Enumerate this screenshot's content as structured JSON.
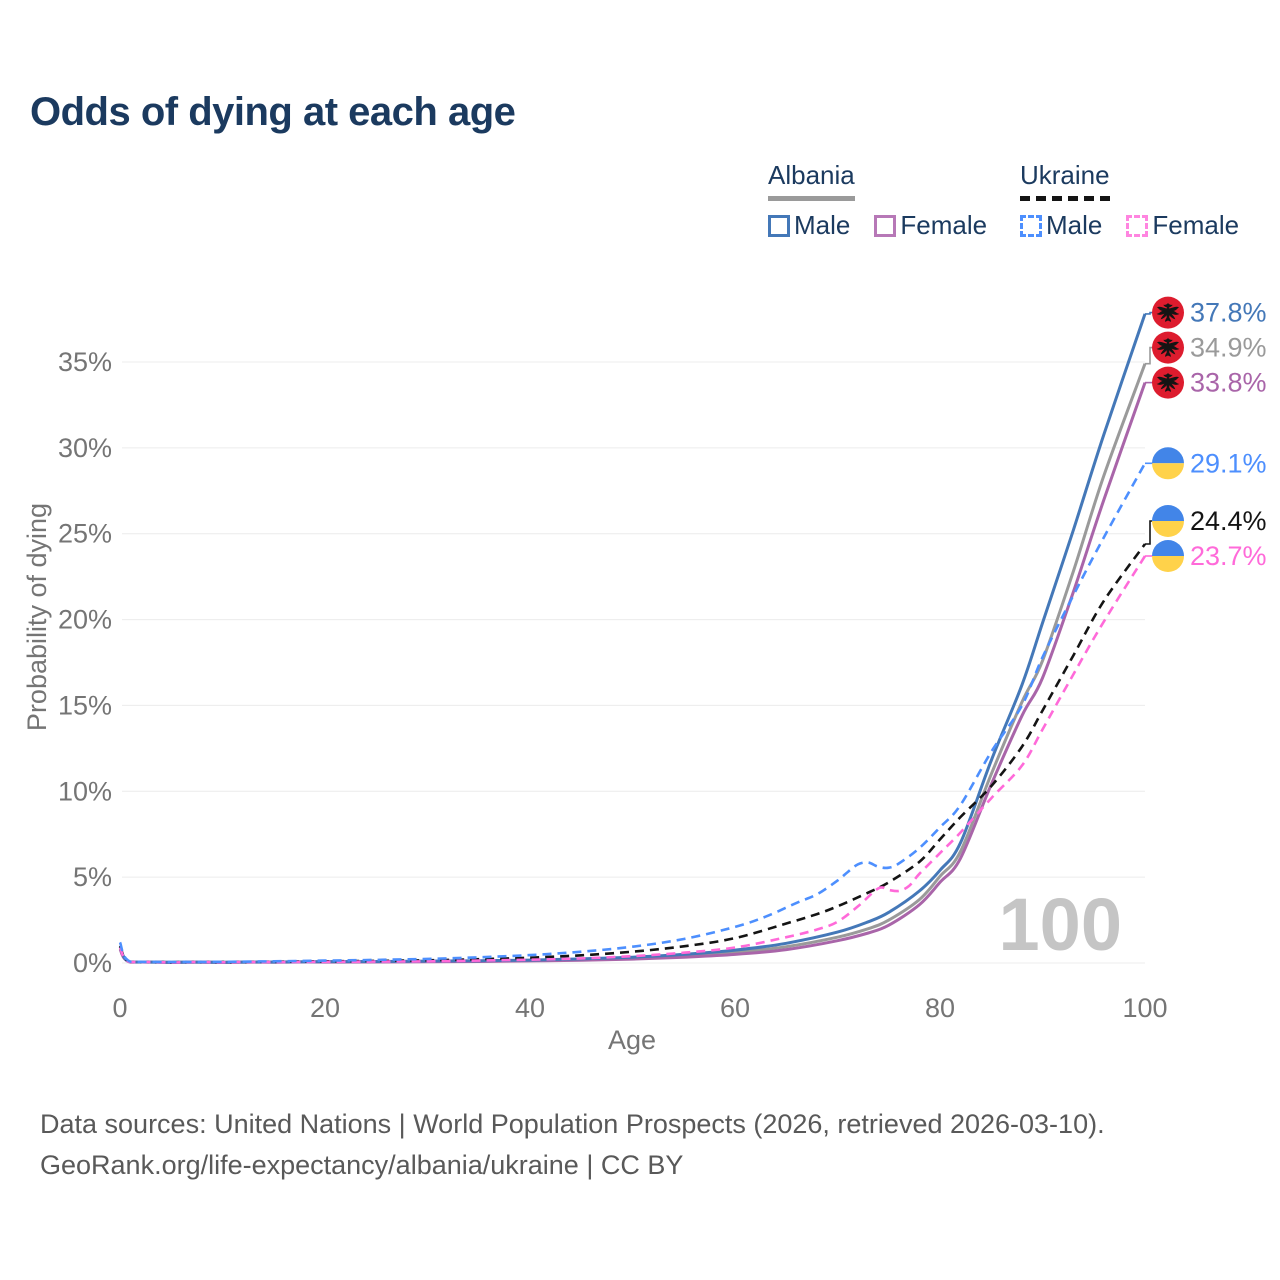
{
  "title": "Odds of dying at each age",
  "legend": {
    "groups": [
      {
        "country": "Albania",
        "line_style": "solid",
        "underline_color": "#9a9a9a",
        "items": [
          {
            "label": "Male",
            "color": "#4478b8"
          },
          {
            "label": "Female",
            "color": "#b778b7"
          }
        ]
      },
      {
        "country": "Ukraine",
        "line_style": "dashed",
        "underline_color": "#141414",
        "items": [
          {
            "label": "Male",
            "color": "#4d8ffe"
          },
          {
            "label": "Female",
            "color": "#ff85e0"
          }
        ]
      }
    ]
  },
  "chart_data": {
    "type": "line",
    "title": "Odds of dying at each age",
    "xlabel": "Age",
    "ylabel": "Probability of dying",
    "x_ticks": [
      0,
      20,
      40,
      60,
      80,
      100
    ],
    "y_tick_labels": [
      "0%",
      "5%",
      "10%",
      "15%",
      "20%",
      "25%",
      "30%",
      "35%"
    ],
    "xlim": [
      0,
      100
    ],
    "ylim_percent": [
      0,
      38.5
    ],
    "grid": "horizontal",
    "legend_position": "top-right",
    "watermark_age": "100",
    "flags": {
      "albania": {
        "background": "#dd1c2e",
        "emblem": "#141414"
      },
      "ukraine": {
        "top": "#4285e8",
        "bottom": "#ffd24a"
      }
    },
    "series": [
      {
        "name": "Albania All",
        "country": "Albania",
        "sex": "all",
        "color": "#9a9a9a",
        "dashed": false,
        "flag": "albania",
        "end_label": "34.9%",
        "end_value": 34.9,
        "points": [
          [
            0,
            0.85
          ],
          [
            1,
            0.05
          ],
          [
            5,
            0.03
          ],
          [
            10,
            0.03
          ],
          [
            15,
            0.05
          ],
          [
            20,
            0.07
          ],
          [
            25,
            0.08
          ],
          [
            30,
            0.09
          ],
          [
            35,
            0.11
          ],
          [
            40,
            0.14
          ],
          [
            45,
            0.2
          ],
          [
            50,
            0.28
          ],
          [
            55,
            0.42
          ],
          [
            60,
            0.62
          ],
          [
            65,
            0.95
          ],
          [
            70,
            1.5
          ],
          [
            73,
            2.0
          ],
          [
            75,
            2.5
          ],
          [
            78,
            3.7
          ],
          [
            80,
            5.05
          ],
          [
            82,
            6.5
          ],
          [
            85,
            11.0
          ],
          [
            88,
            15.2
          ],
          [
            90,
            17.6
          ],
          [
            93,
            22.8
          ],
          [
            96,
            28.4
          ],
          [
            100,
            34.9
          ]
        ]
      },
      {
        "name": "Albania Female",
        "country": "Albania",
        "sex": "female",
        "color": "#a965a9",
        "dashed": false,
        "flag": "albania",
        "end_label": "33.8%",
        "end_value": 33.8,
        "points": [
          [
            0,
            0.8
          ],
          [
            1,
            0.05
          ],
          [
            5,
            0.03
          ],
          [
            10,
            0.03
          ],
          [
            15,
            0.04
          ],
          [
            20,
            0.05
          ],
          [
            25,
            0.06
          ],
          [
            30,
            0.07
          ],
          [
            35,
            0.09
          ],
          [
            40,
            0.12
          ],
          [
            45,
            0.16
          ],
          [
            50,
            0.23
          ],
          [
            55,
            0.34
          ],
          [
            60,
            0.5
          ],
          [
            65,
            0.78
          ],
          [
            70,
            1.3
          ],
          [
            73,
            1.75
          ],
          [
            75,
            2.2
          ],
          [
            78,
            3.4
          ],
          [
            80,
            4.7
          ],
          [
            82,
            6.1
          ],
          [
            85,
            10.4
          ],
          [
            88,
            14.4
          ],
          [
            90,
            16.6
          ],
          [
            93,
            21.6
          ],
          [
            96,
            27.0
          ],
          [
            100,
            33.8
          ]
        ]
      },
      {
        "name": "Albania Male",
        "country": "Albania",
        "sex": "male",
        "color": "#4478b8",
        "dashed": false,
        "flag": "albania",
        "end_label": "37.8%",
        "end_value": 37.8,
        "points": [
          [
            0,
            0.95
          ],
          [
            1,
            0.06
          ],
          [
            5,
            0.04
          ],
          [
            10,
            0.04
          ],
          [
            15,
            0.06
          ],
          [
            20,
            0.08
          ],
          [
            25,
            0.09
          ],
          [
            30,
            0.11
          ],
          [
            35,
            0.13
          ],
          [
            40,
            0.17
          ],
          [
            45,
            0.24
          ],
          [
            50,
            0.34
          ],
          [
            55,
            0.5
          ],
          [
            60,
            0.75
          ],
          [
            65,
            1.15
          ],
          [
            70,
            1.8
          ],
          [
            73,
            2.4
          ],
          [
            75,
            2.95
          ],
          [
            78,
            4.2
          ],
          [
            80,
            5.4
          ],
          [
            82,
            7.0
          ],
          [
            85,
            11.8
          ],
          [
            88,
            16.2
          ],
          [
            90,
            19.8
          ],
          [
            93,
            25.2
          ],
          [
            96,
            30.8
          ],
          [
            100,
            37.8
          ]
        ]
      },
      {
        "name": "Ukraine All",
        "country": "Ukraine",
        "sex": "all",
        "color": "#141414",
        "dashed": true,
        "flag": "ukraine",
        "end_label": "24.4%",
        "end_value": 24.4,
        "points": [
          [
            0,
            1.0
          ],
          [
            1,
            0.06
          ],
          [
            5,
            0.04
          ],
          [
            10,
            0.05
          ],
          [
            15,
            0.07
          ],
          [
            20,
            0.1
          ],
          [
            25,
            0.12
          ],
          [
            30,
            0.16
          ],
          [
            35,
            0.22
          ],
          [
            40,
            0.31
          ],
          [
            45,
            0.45
          ],
          [
            50,
            0.66
          ],
          [
            55,
            0.97
          ],
          [
            60,
            1.45
          ],
          [
            65,
            2.3
          ],
          [
            68,
            2.85
          ],
          [
            70,
            3.3
          ],
          [
            73,
            4.1
          ],
          [
            75,
            4.7
          ],
          [
            78,
            5.9
          ],
          [
            80,
            7.2
          ],
          [
            82,
            8.5
          ],
          [
            85,
            10.3
          ],
          [
            88,
            12.6
          ],
          [
            90,
            14.7
          ],
          [
            93,
            17.9
          ],
          [
            96,
            21.1
          ],
          [
            100,
            24.4
          ]
        ]
      },
      {
        "name": "Ukraine Female",
        "country": "Ukraine",
        "sex": "female",
        "color": "#ff6ad9",
        "dashed": true,
        "flag": "ukraine",
        "end_label": "23.7%",
        "end_value": 23.7,
        "points": [
          [
            0,
            0.9
          ],
          [
            1,
            0.05
          ],
          [
            5,
            0.03
          ],
          [
            10,
            0.04
          ],
          [
            15,
            0.05
          ],
          [
            20,
            0.07
          ],
          [
            25,
            0.08
          ],
          [
            30,
            0.1
          ],
          [
            35,
            0.14
          ],
          [
            40,
            0.19
          ],
          [
            45,
            0.27
          ],
          [
            50,
            0.4
          ],
          [
            55,
            0.6
          ],
          [
            60,
            0.9
          ],
          [
            65,
            1.5
          ],
          [
            68,
            1.95
          ],
          [
            70,
            2.4
          ],
          [
            72,
            3.3
          ],
          [
            74,
            4.35
          ],
          [
            75,
            4.25
          ],
          [
            76,
            4.2
          ],
          [
            77,
            4.5
          ],
          [
            78,
            5.2
          ],
          [
            80,
            6.4
          ],
          [
            82,
            7.6
          ],
          [
            85,
            9.6
          ],
          [
            88,
            11.5
          ],
          [
            90,
            13.6
          ],
          [
            93,
            16.8
          ],
          [
            96,
            19.9
          ],
          [
            100,
            23.7
          ]
        ]
      },
      {
        "name": "Ukraine Male",
        "country": "Ukraine",
        "sex": "male",
        "color": "#4d8ffe",
        "dashed": true,
        "flag": "ukraine",
        "end_label": "29.1%",
        "end_value": 29.1,
        "points": [
          [
            0,
            1.2
          ],
          [
            1,
            0.08
          ],
          [
            5,
            0.06
          ],
          [
            10,
            0.07
          ],
          [
            15,
            0.1
          ],
          [
            20,
            0.14
          ],
          [
            25,
            0.18
          ],
          [
            30,
            0.24
          ],
          [
            35,
            0.33
          ],
          [
            40,
            0.46
          ],
          [
            45,
            0.66
          ],
          [
            50,
            0.95
          ],
          [
            55,
            1.4
          ],
          [
            60,
            2.1
          ],
          [
            63,
            2.7
          ],
          [
            66,
            3.5
          ],
          [
            68,
            4.0
          ],
          [
            70,
            4.8
          ],
          [
            71,
            5.3
          ],
          [
            72,
            5.75
          ],
          [
            73,
            5.85
          ],
          [
            74,
            5.6
          ],
          [
            75,
            5.55
          ],
          [
            76,
            5.8
          ],
          [
            78,
            6.7
          ],
          [
            80,
            7.9
          ],
          [
            82,
            9.2
          ],
          [
            85,
            12.3
          ],
          [
            88,
            15.0
          ],
          [
            90,
            17.8
          ],
          [
            93,
            21.4
          ],
          [
            96,
            24.8
          ],
          [
            100,
            29.1
          ]
        ]
      }
    ]
  },
  "footer": {
    "line1": "Data sources: United Nations | World Population Prospects (2026, retrieved 2026-03-10).",
    "line2": "GeoRank.org/life-expectancy/albania/ukraine | CC BY"
  }
}
